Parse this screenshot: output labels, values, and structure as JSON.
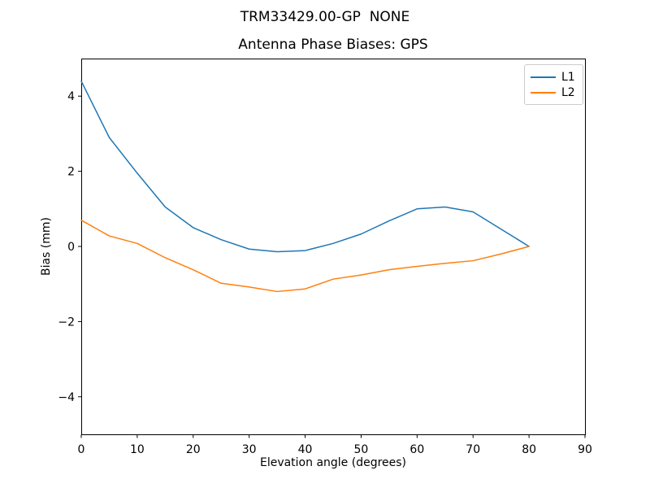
{
  "figure": {
    "suptitle": "TRM33429.00-GP  NONE",
    "axes_title": "Antenna Phase Biases: GPS"
  },
  "chart_data": {
    "type": "line",
    "suptitle": "TRM33429.00-GP  NONE",
    "title": "Antenna Phase Biases: GPS",
    "xlabel": "Elevation angle (degrees)",
    "ylabel": "Bias (mm)",
    "xlim": [
      0,
      90
    ],
    "ylim": [
      -5,
      5
    ],
    "xticks": [
      0,
      10,
      20,
      30,
      40,
      50,
      60,
      70,
      80,
      90
    ],
    "yticks": [
      -4,
      -2,
      0,
      2,
      4
    ],
    "grid": false,
    "legend_position": "upper right",
    "background": "#ffffff",
    "axis_color": "#000000",
    "x": [
      0,
      5,
      10,
      15,
      20,
      25,
      30,
      35,
      40,
      45,
      50,
      55,
      60,
      65,
      70,
      75,
      80
    ],
    "series": [
      {
        "name": "L1",
        "color": "#1f77b4",
        "values": [
          4.4,
          2.9,
          1.95,
          1.05,
          0.5,
          0.18,
          -0.07,
          -0.14,
          -0.11,
          0.08,
          0.33,
          0.68,
          1.0,
          1.05,
          0.92,
          0.46,
          0.0
        ]
      },
      {
        "name": "L2",
        "color": "#ff7f0e",
        "values": [
          0.7,
          0.28,
          0.08,
          -0.3,
          -0.62,
          -0.98,
          -1.08,
          -1.2,
          -1.13,
          -0.87,
          -0.76,
          -0.62,
          -0.53,
          -0.45,
          -0.38,
          -0.2,
          0.0
        ]
      }
    ]
  },
  "legend": {
    "items": [
      {
        "label": "L1",
        "color": "#1f77b4"
      },
      {
        "label": "L2",
        "color": "#ff7f0e"
      }
    ]
  }
}
